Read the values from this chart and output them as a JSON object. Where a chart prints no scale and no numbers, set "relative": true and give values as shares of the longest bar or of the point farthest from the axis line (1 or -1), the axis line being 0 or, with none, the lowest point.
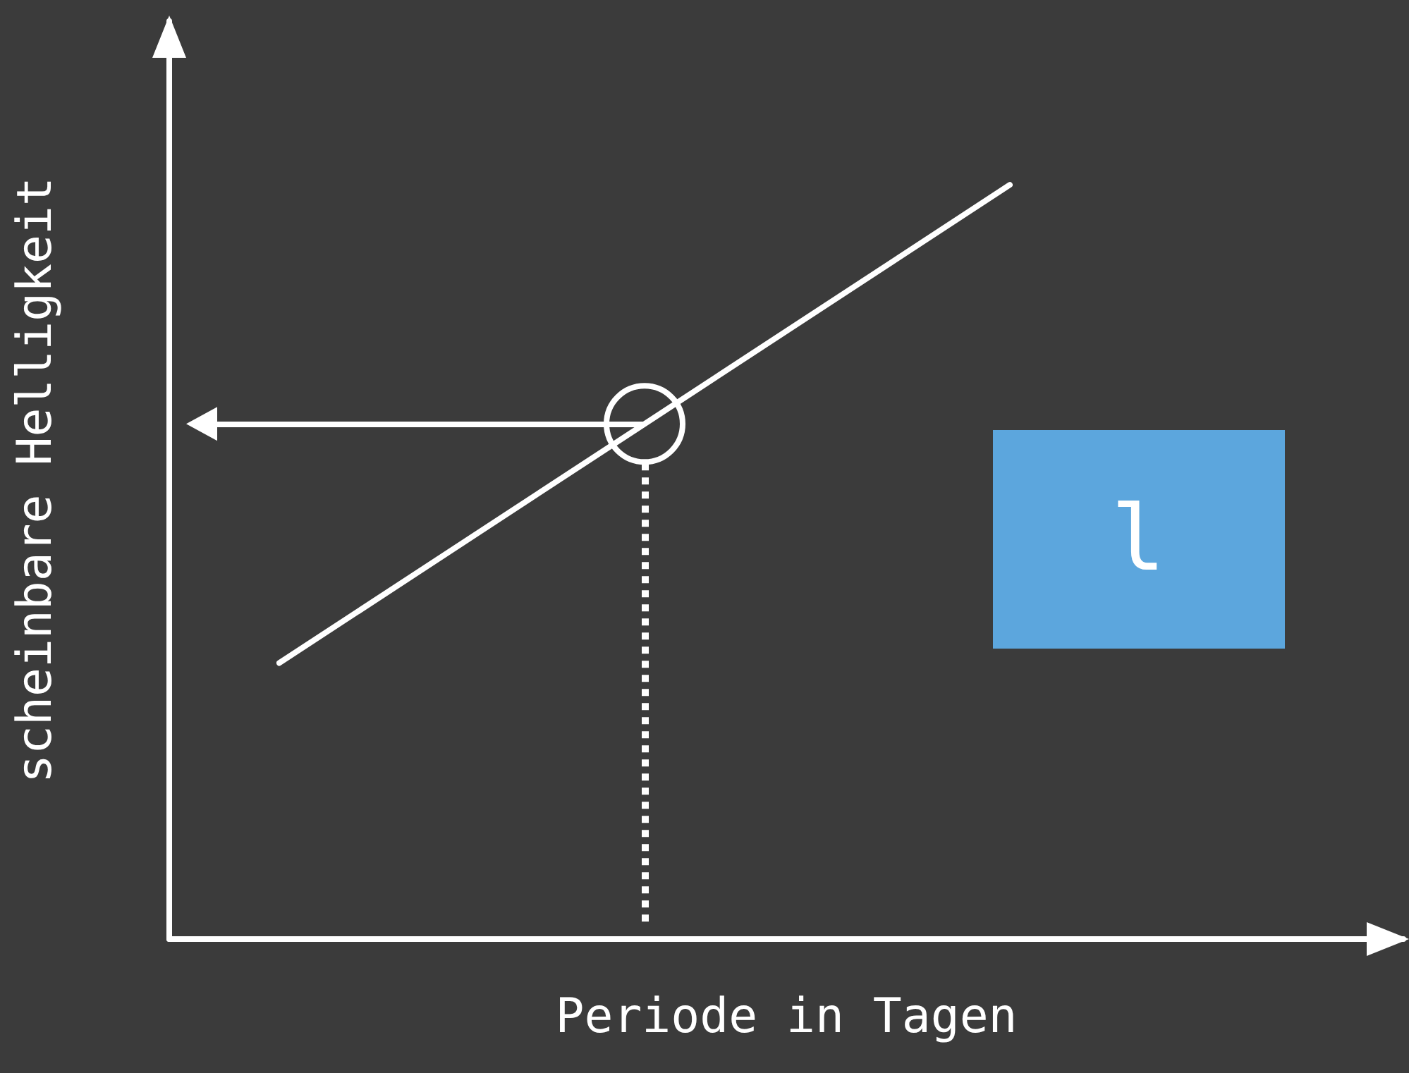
{
  "chart_data": {
    "type": "line",
    "relative": true,
    "xlabel": "Periode in Tagen",
    "ylabel": "scheinbare Helligkeit",
    "grid": false,
    "marker": "none",
    "line_style": "solid",
    "annotations": [
      "l"
    ],
    "categories": [
      null,
      null,
      null
    ],
    "ref_lines": [
      {
        "axis": "y",
        "value": 0.683,
        "color": "#ffffff"
      }
    ],
    "series": [
      {
        "color": "#ffffff",
        "values": [
          0.366,
          0.683,
          1
        ]
      }
    ]
  }
}
